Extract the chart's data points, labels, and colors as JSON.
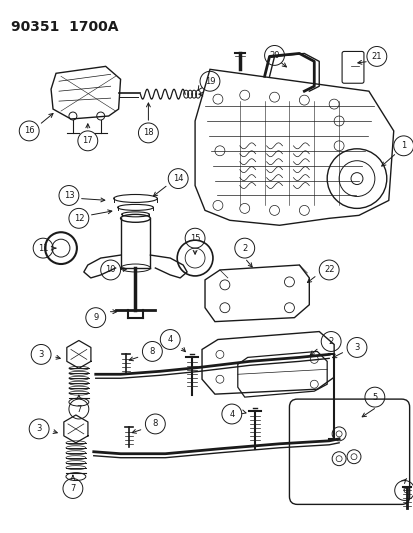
{
  "title": "90351  1700A",
  "bg_color": "#ffffff",
  "line_color": "#1a1a1a",
  "title_fontsize": 10,
  "fig_width": 4.14,
  "fig_height": 5.33,
  "dpi": 100
}
